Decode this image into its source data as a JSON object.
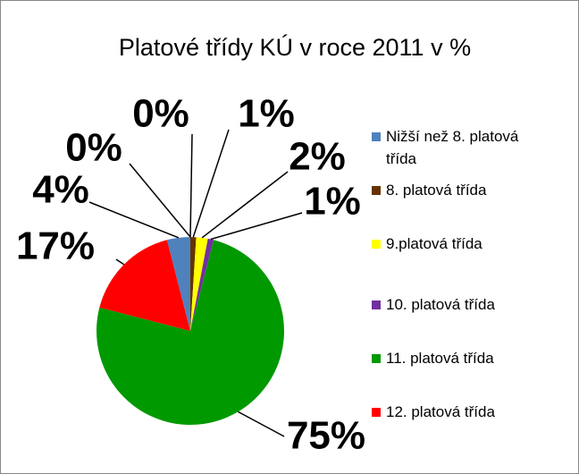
{
  "chart_data": {
    "type": "pie",
    "title": "Platové třídy KÚ v roce 2011 v %",
    "categories": [
      "Nižší než 8. platová třída",
      "8. platová třída",
      "9.platová třída",
      "10. platová třída",
      "11. platová třída",
      "12. platová třída",
      null,
      null
    ],
    "values": [
      4,
      1,
      2,
      1,
      75,
      17,
      0,
      0
    ],
    "value_labels": [
      "4%",
      "1%",
      "2%",
      "1%",
      "75%",
      "17%",
      "0%",
      "0%"
    ],
    "colors": [
      "#4f81bd",
      "#663300",
      "#ffff00",
      "#7030a0",
      "#009900",
      "#ff0000",
      "#4f81bd",
      "#663300"
    ],
    "legend": "right"
  }
}
